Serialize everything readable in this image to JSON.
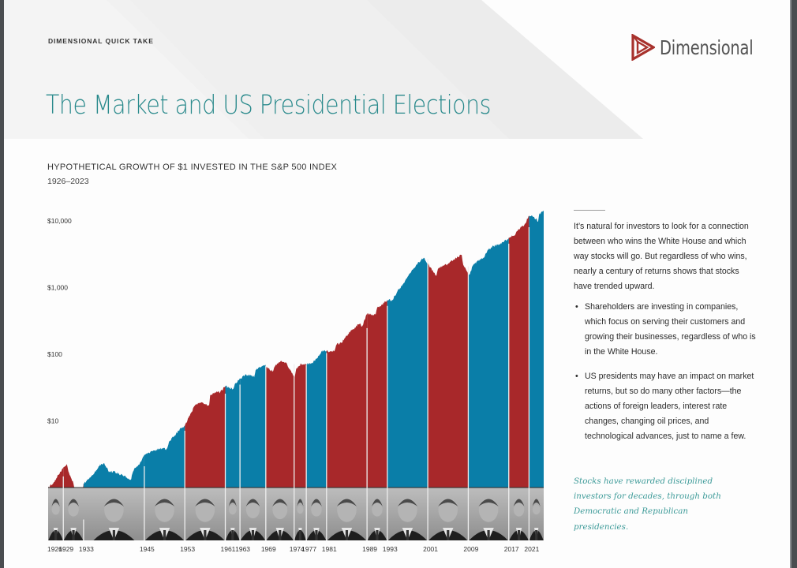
{
  "header": {
    "kicker": "DIMENSIONAL QUICK TAKE",
    "title": "The Market and US Presidential Elections",
    "logo": {
      "icon": "dimensional-triangle-logo-icon",
      "text": "Dimensional",
      "color": "#a8322d"
    }
  },
  "colors": {
    "republican": "#a8282a",
    "democrat": "#0a7ea8",
    "title_teal": "#2a8a8c",
    "quote_teal": "#3c9a98"
  },
  "sidebar": {
    "intro": "It’s natural for investors to look for a connection between who wins the White House and which way stocks will go. But regardless of who wins, nearly a century of returns shows that stocks have trended upward.",
    "bullets": [
      "Shareholders are investing in companies, which focus on serving their customers and growing their businesses, regardless of who is in the White House.",
      "US presidents may have an impact on market returns, but so do many other factors—the actions of foreign leaders, interest rate changes, changing oil prices, and technological advances, just to name a few."
    ],
    "quote": "Stocks have rewarded disciplined investors for decades, through both Democratic and Republican presidencies."
  },
  "chart_data": {
    "type": "area",
    "title": "HYPOTHETICAL GROWTH OF $1 INVESTED IN THE S&P 500 INDEX",
    "subtitle": "1926–2023",
    "xlabel": "",
    "ylabel": "",
    "yscale": "log",
    "ylim": [
      1,
      20000
    ],
    "xlim": [
      1926,
      2023.9
    ],
    "ytick_values": [
      10,
      100,
      1000,
      10000
    ],
    "ytick_labels": [
      "$10",
      "$100",
      "$1,000",
      "$10,000"
    ],
    "grid": false,
    "legend": "none",
    "x": [
      1926,
      1927,
      1928,
      1929.7,
      1930,
      1931,
      1932.4,
      1933,
      1934,
      1935,
      1936,
      1937.1,
      1938,
      1939,
      1940,
      1941,
      1942.3,
      1943,
      1944,
      1945,
      1946.4,
      1947,
      1948,
      1949.4,
      1950,
      1951,
      1952,
      1953,
      1954,
      1955,
      1956,
      1957.8,
      1958,
      1959,
      1960,
      1961,
      1962.5,
      1963,
      1964,
      1965,
      1966.7,
      1967,
      1968.9,
      1969,
      1970.4,
      1971,
      1972,
      1973,
      1974.7,
      1975,
      1976,
      1977,
      1978,
      1979,
      1980,
      1981,
      1982.5,
      1983,
      1984,
      1985,
      1986,
      1987.6,
      1988,
      1989,
      1990.7,
      1991,
      1992,
      1993,
      1994,
      1995,
      1996,
      1997,
      1998,
      1999,
      2000.2,
      2001,
      2002.7,
      2003,
      2004,
      2005,
      2006,
      2007.7,
      2008,
      2009.2,
      2010,
      2011,
      2012,
      2013,
      2014,
      2015,
      2016,
      2017,
      2018,
      2019,
      2020,
      2021,
      2022,
      2022.8,
      2023,
      2023.9
    ],
    "values": [
      1.0,
      1.15,
      1.55,
      2.25,
      1.75,
      1.15,
      0.35,
      1.15,
      1.35,
      1.6,
      2.1,
      2.3,
      1.7,
      1.75,
      1.6,
      1.5,
      1.3,
      1.9,
      2.2,
      3.1,
      3.5,
      3.6,
      3.8,
      3.8,
      5.0,
      6.0,
      7.5,
      8.5,
      12.0,
      17.0,
      19.0,
      17.0,
      24.0,
      27.0,
      27.0,
      33.0,
      30.0,
      37.0,
      43.0,
      50.0,
      45.0,
      58.0,
      70.0,
      65.0,
      55.0,
      70.0,
      80.0,
      75.0,
      45.0,
      60.0,
      72.0,
      70.0,
      73.0,
      85.0,
      110.0,
      112.0,
      110.0,
      140.0,
      150.0,
      190.0,
      230.0,
      290.0,
      260.0,
      400.0,
      390.0,
      500.0,
      560.0,
      650.0,
      650.0,
      880.0,
      1100.0,
      1450.0,
      1850.0,
      2300.0,
      2800.0,
      2300.0,
      1500.0,
      1900.0,
      2150.0,
      2250.0,
      2600.0,
      3100.0,
      2200.0,
      1550.0,
      2200.0,
      2500.0,
      2800.0,
      3700.0,
      4200.0,
      4300.0,
      4800.0,
      5600.0,
      6000.0,
      7500.0,
      8500.0,
      12000.0,
      11500.0,
      9800.0,
      12500.0,
      14000.0
    ],
    "presidencies": [
      {
        "start": 1926,
        "end": 1929,
        "party": "Republican",
        "label": "1926"
      },
      {
        "start": 1929,
        "end": 1933,
        "party": "Republican",
        "label": "1929"
      },
      {
        "start": 1933,
        "end": 1945,
        "party": "Democrat",
        "label": "1933"
      },
      {
        "start": 1945,
        "end": 1953,
        "party": "Democrat",
        "label": "1945"
      },
      {
        "start": 1953,
        "end": 1961,
        "party": "Republican",
        "label": "1953"
      },
      {
        "start": 1961,
        "end": 1963.9,
        "party": "Democrat",
        "label": "1961"
      },
      {
        "start": 1963.9,
        "end": 1969,
        "party": "Democrat",
        "label": "1963"
      },
      {
        "start": 1969,
        "end": 1974.6,
        "party": "Republican",
        "label": "1969"
      },
      {
        "start": 1974.6,
        "end": 1977,
        "party": "Republican",
        "label": "1974"
      },
      {
        "start": 1977,
        "end": 1981,
        "party": "Democrat",
        "label": "1977"
      },
      {
        "start": 1981,
        "end": 1989,
        "party": "Republican",
        "label": "1981"
      },
      {
        "start": 1989,
        "end": 1993,
        "party": "Republican",
        "label": "1989"
      },
      {
        "start": 1993,
        "end": 2001,
        "party": "Democrat",
        "label": "1993"
      },
      {
        "start": 2001,
        "end": 2009,
        "party": "Republican",
        "label": "2001"
      },
      {
        "start": 2009,
        "end": 2017,
        "party": "Democrat",
        "label": "2009"
      },
      {
        "start": 2017,
        "end": 2021,
        "party": "Republican",
        "label": "2017"
      },
      {
        "start": 2021,
        "end": 2023.9,
        "party": "Democrat",
        "label": "2021"
      }
    ],
    "annotations": [],
    "portrait_strip": "black-and-white portraits of each president under their term segment"
  }
}
